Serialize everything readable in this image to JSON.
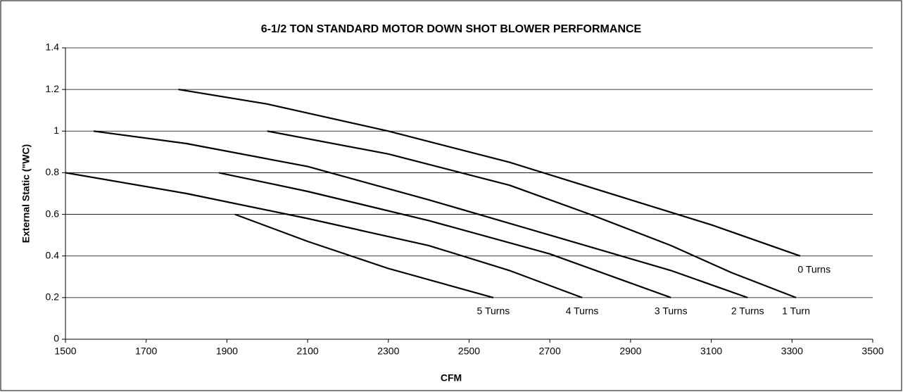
{
  "chart_data": {
    "type": "line",
    "title": "6-1/2 TON STANDARD MOTOR DOWN SHOT BLOWER PERFORMANCE",
    "x_label": "CFM",
    "y_label": "External Static (\"WC)",
    "xlim": [
      1500,
      3500
    ],
    "xticks": [
      1500,
      1700,
      1900,
      2100,
      2300,
      2500,
      2700,
      2900,
      3100,
      3300,
      3500
    ],
    "ylim": [
      0,
      1.4
    ],
    "yticks": [
      0,
      0.2,
      0.4,
      0.6,
      0.8,
      1,
      1.2,
      1.4
    ],
    "grid": true,
    "series": [
      {
        "name": "0 Turns",
        "color": "#000000",
        "x": [
          1780,
          2000,
          2300,
          2600,
          2900,
          3100,
          3320
        ],
        "values": [
          1.2,
          1.13,
          1.0,
          0.85,
          0.67,
          0.55,
          0.4
        ]
      },
      {
        "name": "1 Turn",
        "color": "#000000",
        "x": [
          2000,
          2300,
          2600,
          2800,
          3000,
          3150,
          3310
        ],
        "values": [
          1.0,
          0.89,
          0.74,
          0.6,
          0.45,
          0.32,
          0.2
        ]
      },
      {
        "name": "2 Turns",
        "color": "#000000",
        "x": [
          1570,
          1800,
          2100,
          2400,
          2700,
          3000,
          3190
        ],
        "values": [
          1.0,
          0.94,
          0.83,
          0.67,
          0.5,
          0.33,
          0.2
        ]
      },
      {
        "name": "3 Turns",
        "color": "#000000",
        "x": [
          1880,
          2100,
          2400,
          2700,
          3000
        ],
        "values": [
          0.8,
          0.71,
          0.57,
          0.41,
          0.2
        ]
      },
      {
        "name": "4 Turns",
        "color": "#000000",
        "x": [
          1500,
          1800,
          2100,
          2400,
          2600,
          2780
        ],
        "values": [
          0.8,
          0.7,
          0.58,
          0.45,
          0.33,
          0.2
        ]
      },
      {
        "name": "5 Turns",
        "color": "#000000",
        "x": [
          1920,
          2100,
          2300,
          2560
        ],
        "values": [
          0.6,
          0.47,
          0.34,
          0.2
        ]
      }
    ]
  }
}
